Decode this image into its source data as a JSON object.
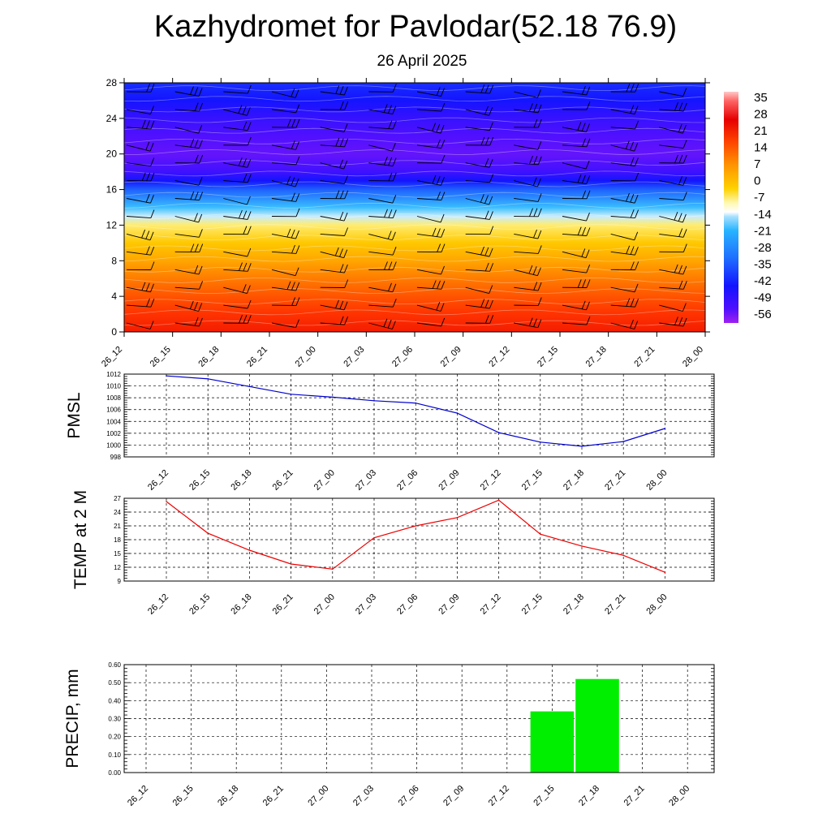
{
  "header": {
    "title": "Kazhydromet for Pavlodar(52.18 76.9)",
    "subtitle": "26 April 2025"
  },
  "colors": {
    "pmsl_line": "#0000cc",
    "temp_line": "#ee0000",
    "precip_bar": "#00ee00",
    "barb": "#000000"
  },
  "chart_data": [
    {
      "id": "cross-section",
      "type": "heatmap",
      "title": "",
      "ylabel": "",
      "categories": [
        "26_12",
        "26_15",
        "26_18",
        "26_21",
        "27_00",
        "27_03",
        "27_06",
        "27_09",
        "27_12",
        "27_15",
        "27_18",
        "27_21",
        "28_00"
      ],
      "ylim": [
        0,
        28
      ],
      "yticks": [
        0,
        4,
        8,
        12,
        16,
        20,
        24,
        28
      ],
      "colorbar": {
        "labels": [
          "35",
          "28",
          "21",
          "14",
          "7",
          "0",
          "-7",
          "-14",
          "-21",
          "-28",
          "-35",
          "-42",
          "-49",
          "-56"
        ],
        "min": -60,
        "max": 38
      },
      "temperature_profile": [
        {
          "level": 0,
          "value": 24
        },
        {
          "level": 2,
          "value": 21
        },
        {
          "level": 4,
          "value": 17
        },
        {
          "level": 6,
          "value": 12
        },
        {
          "level": 8,
          "value": 6
        },
        {
          "level": 10,
          "value": 0
        },
        {
          "level": 12,
          "value": -8
        },
        {
          "level": 13,
          "value": -16
        },
        {
          "level": 14,
          "value": -26
        },
        {
          "level": 16,
          "value": -40
        },
        {
          "level": 17,
          "value": -49
        },
        {
          "level": 18,
          "value": -54
        },
        {
          "level": 20,
          "value": -57
        },
        {
          "level": 22,
          "value": -56
        },
        {
          "level": 24,
          "value": -53
        },
        {
          "level": 26,
          "value": -49
        },
        {
          "level": 28,
          "value": -46
        }
      ],
      "barb_levels": [
        1,
        3,
        5,
        7,
        9,
        11,
        13,
        15,
        17,
        19,
        21,
        23,
        25,
        27
      ]
    },
    {
      "id": "pmsl",
      "type": "line",
      "ylabel": "PMSL",
      "ylim": [
        998,
        1012
      ],
      "yticks": [
        998,
        1000,
        1002,
        1004,
        1006,
        1008,
        1010,
        1012
      ],
      "categories": [
        "26_12",
        "26_15",
        "26_18",
        "26_21",
        "27_00",
        "27_03",
        "27_06",
        "27_09",
        "27_12",
        "27_15",
        "27_18",
        "27_21",
        "28_00"
      ],
      "values": [
        1011.7,
        1011.2,
        1009.9,
        1008.6,
        1008.1,
        1007.5,
        1007.1,
        1005.4,
        1002.1,
        1000.5,
        999.8,
        1000.6,
        1002.8
      ]
    },
    {
      "id": "temp2m",
      "type": "line",
      "ylabel": "TEMP at 2 M",
      "ylim": [
        9,
        27
      ],
      "yticks": [
        9,
        12,
        15,
        18,
        21,
        24,
        27
      ],
      "categories": [
        "26_12",
        "26_15",
        "26_18",
        "26_21",
        "27_00",
        "27_03",
        "27_06",
        "27_09",
        "27_12",
        "27_15",
        "27_18",
        "27_21",
        "28_00"
      ],
      "values": [
        26.3,
        19.4,
        15.7,
        12.7,
        11.6,
        18.4,
        21.0,
        22.8,
        26.6,
        19.2,
        16.6,
        14.6,
        10.9
      ]
    },
    {
      "id": "precip",
      "type": "bar",
      "ylabel": "PRECIP, mm",
      "ylim": [
        0,
        0.6
      ],
      "yticks": [
        "0.00",
        "0.10",
        "0.20",
        "0.30",
        "0.40",
        "0.50",
        "0.60"
      ],
      "categories": [
        "26_12",
        "26_15",
        "26_18",
        "26_21",
        "27_00",
        "27_03",
        "27_06",
        "27_09",
        "27_12",
        "27_15",
        "27_18",
        "27_21",
        "28_00"
      ],
      "values": [
        0,
        0,
        0,
        0,
        0,
        0,
        0,
        0,
        0,
        0.34,
        0.52,
        0,
        0
      ]
    }
  ]
}
